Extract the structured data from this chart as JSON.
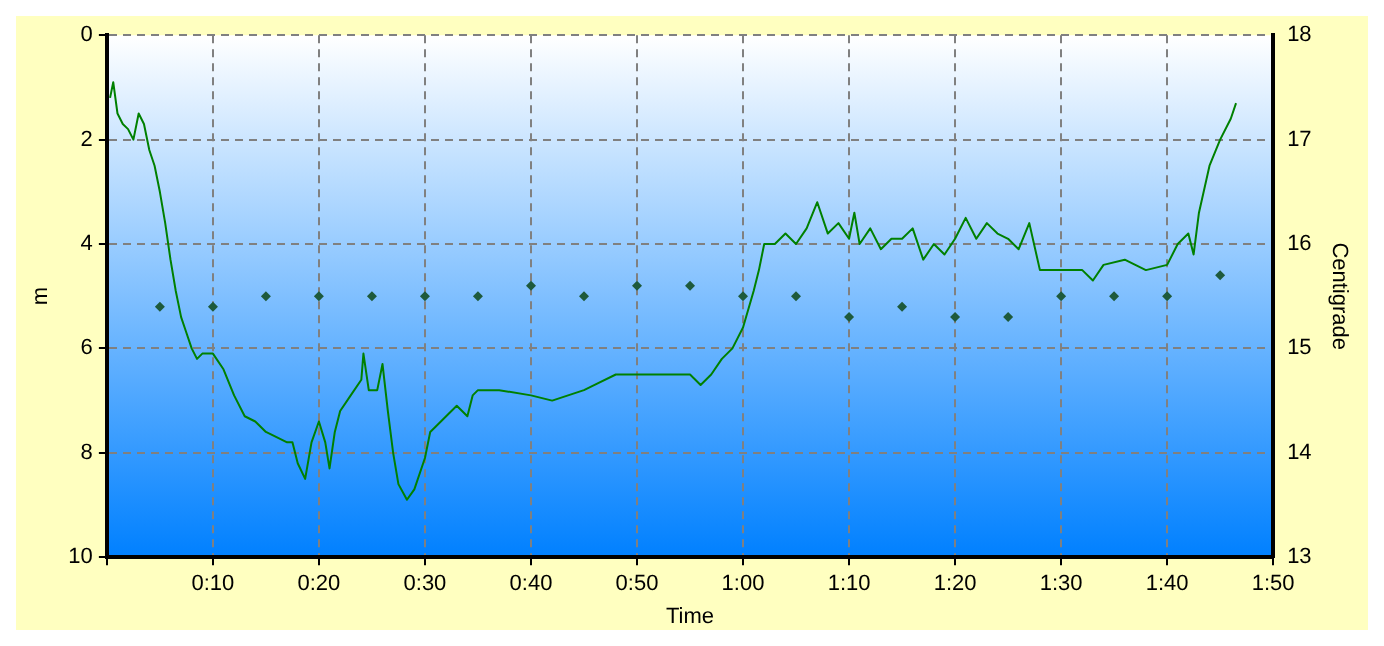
{
  "chart_data": {
    "type": "line",
    "xlabel": "Time",
    "ylabel": "m",
    "y2label": "Centigrade",
    "xlim": [
      0,
      1.8333
    ],
    "xticks": [
      {
        "value": 0,
        "label": null
      },
      {
        "value": 0.1667,
        "label": "0:10"
      },
      {
        "value": 0.3333,
        "label": "0:20"
      },
      {
        "value": 0.5,
        "label": "0:30"
      },
      {
        "value": 0.6667,
        "label": "0:40"
      },
      {
        "value": 0.8333,
        "label": "0:50"
      },
      {
        "value": 1,
        "label": "1:00"
      },
      {
        "value": 1.1667,
        "label": "1:10"
      },
      {
        "value": 1.3333,
        "label": "1:20"
      },
      {
        "value": 1.5,
        "label": "1:30"
      },
      {
        "value": 1.6667,
        "label": "1:40"
      },
      {
        "value": 1.8333,
        "label": "1:50"
      }
    ],
    "ylim": [
      10,
      0
    ],
    "yticks": [
      0,
      2,
      4,
      6,
      8,
      10
    ],
    "y2lim": [
      13,
      18
    ],
    "y2ticks": [
      13,
      14,
      15,
      16,
      17,
      18
    ],
    "grid": true,
    "legend": false,
    "series": [
      {
        "type": "line",
        "color": "#008000",
        "marker": "none",
        "line_style": "solid",
        "x": [
          0.005,
          0.01,
          0.0167,
          0.025,
          0.0333,
          0.0417,
          0.05,
          0.0583,
          0.0667,
          0.075,
          0.0833,
          0.0917,
          0.1,
          0.1083,
          0.1167,
          0.125,
          0.1333,
          0.1417,
          0.15,
          0.1667,
          0.1833,
          0.2,
          0.2167,
          0.2333,
          0.25,
          0.2667,
          0.2833,
          0.2917,
          0.3,
          0.3117,
          0.3217,
          0.3333,
          0.3433,
          0.35,
          0.3583,
          0.3667,
          0.3833,
          0.4,
          0.4033,
          0.4117,
          0.425,
          0.4333,
          0.4417,
          0.45,
          0.4583,
          0.4717,
          0.4833,
          0.5,
          0.5083,
          0.5167,
          0.5333,
          0.55,
          0.5667,
          0.575,
          0.5833,
          0.6167,
          0.6667,
          0.7,
          0.75,
          0.7667,
          0.8,
          0.8333,
          0.8667,
          0.9167,
          0.9333,
          0.95,
          0.9667,
          0.9833,
          1,
          1.0167,
          1.025,
          1.0333,
          1.05,
          1.0667,
          1.0833,
          1.1,
          1.1167,
          1.1333,
          1.15,
          1.1667,
          1.175,
          1.1833,
          1.2,
          1.2167,
          1.2333,
          1.25,
          1.2667,
          1.2833,
          1.3,
          1.3167,
          1.3333,
          1.35,
          1.3667,
          1.3833,
          1.4,
          1.4167,
          1.4333,
          1.45,
          1.4667,
          1.4833,
          1.5,
          1.5333,
          1.55,
          1.5667,
          1.6,
          1.6333,
          1.6667,
          1.6833,
          1.7,
          1.7083,
          1.7167,
          1.7333,
          1.75,
          1.7667,
          1.775
        ],
        "values": [
          1.2,
          0.9,
          1.5,
          1.7,
          1.8,
          2.0,
          1.5,
          1.7,
          2.2,
          2.5,
          3.0,
          3.6,
          4.3,
          4.9,
          5.4,
          5.7,
          6.0,
          6.2,
          6.1,
          6.1,
          6.4,
          6.9,
          7.3,
          7.4,
          7.6,
          7.7,
          7.8,
          7.8,
          8.2,
          8.5,
          7.8,
          7.4,
          7.8,
          8.3,
          7.6,
          7.2,
          6.9,
          6.6,
          6.1,
          6.8,
          6.8,
          6.3,
          7.2,
          8.0,
          8.6,
          8.9,
          8.7,
          8.1,
          7.6,
          7.5,
          7.3,
          7.1,
          7.3,
          6.9,
          6.8,
          6.8,
          6.9,
          7.0,
          6.8,
          6.7,
          6.5,
          6.5,
          6.5,
          6.5,
          6.7,
          6.5,
          6.2,
          6.0,
          5.6,
          4.9,
          4.5,
          4.0,
          4.0,
          3.8,
          4.0,
          3.7,
          3.2,
          3.8,
          3.6,
          3.9,
          3.4,
          4.0,
          3.7,
          4.1,
          3.9,
          3.9,
          3.7,
          4.3,
          4.0,
          4.2,
          3.9,
          3.5,
          3.9,
          3.6,
          3.8,
          3.9,
          4.1,
          3.6,
          4.5,
          4.5,
          4.5,
          4.5,
          4.7,
          4.4,
          4.3,
          4.5,
          4.4,
          4.0,
          3.8,
          4.2,
          3.4,
          2.5,
          2.0,
          1.6,
          1.3
        ]
      },
      {
        "type": "scatter",
        "axis": "y2",
        "color": "#1e5a3c",
        "marker": "diamond",
        "x": [
          0.0833,
          0.1667,
          0.25,
          0.3333,
          0.4167,
          0.5,
          0.5833,
          0.6667,
          0.75,
          0.8333,
          0.9167,
          1,
          1.0833,
          1.1667,
          1.25,
          1.3333,
          1.4167,
          1.5,
          1.5833,
          1.6667,
          1.75
        ],
        "values": [
          15.4,
          15.4,
          15.5,
          15.5,
          15.5,
          15.5,
          15.5,
          15.6,
          15.5,
          15.6,
          15.6,
          15.5,
          15.5,
          15.3,
          15.4,
          15.3,
          15.3,
          15.5,
          15.5,
          15.5,
          15.7
        ]
      }
    ]
  }
}
